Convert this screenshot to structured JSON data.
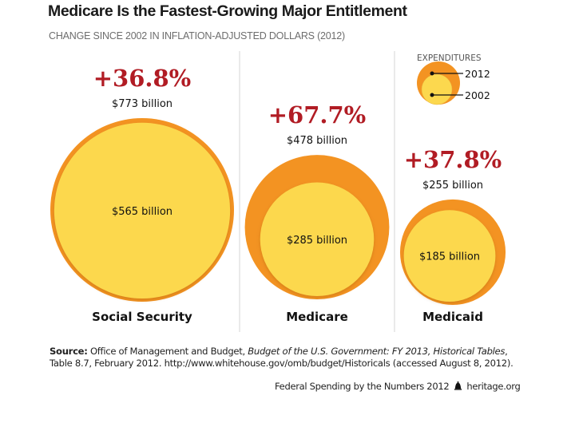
{
  "header": {
    "title": "Medicare Is the Fastest-Growing Major Entitlement",
    "subtitle": "CHANGE SINCE 2002 IN INFLATION-ADJUSTED DOLLARS (2012)"
  },
  "chart_data": {
    "type": "bubble",
    "title": "Medicare Is the Fastest-Growing Major Entitlement",
    "subtitle": "CHANGE SINCE 2002 IN INFLATION-ADJUSTED DOLLARS (2012)",
    "unit": "billion USD",
    "categories": [
      "Social Security",
      "Medicare",
      "Medicaid"
    ],
    "series": [
      {
        "name": "2012",
        "values": [
          773,
          478,
          255
        ],
        "labels": [
          "$773 billion",
          "$478 billion",
          "$255 billion"
        ],
        "color": "#f39322"
      },
      {
        "name": "2002",
        "values": [
          565,
          285,
          185
        ],
        "labels": [
          "$565 billion",
          "$285 billion",
          "$185 billion"
        ],
        "color": "#fcd84e"
      }
    ],
    "change_labels": [
      "+36.8%",
      "+67.7%",
      "+37.8%"
    ],
    "change_values": [
      36.8,
      67.7,
      37.8
    ],
    "change_color": "#b11c24",
    "legend": {
      "title": "EXPENDITURES",
      "entries": [
        "2012",
        "2002"
      ],
      "placement": "top-right"
    }
  },
  "source": {
    "label": "Source:",
    "text1": " Office of Management and Budget, ",
    "italic": "Budget of the U.S. Government: FY 2013, Historical Tables",
    "text2": ", Table 8.7, February 2012. http://www.whitehouse.gov/omb/budget/Historicals (accessed August 8, 2012)."
  },
  "footer": {
    "text": "Federal Spending by the Numbers 2012",
    "icon": "liberty-bell-icon",
    "site": "heritage.org"
  }
}
